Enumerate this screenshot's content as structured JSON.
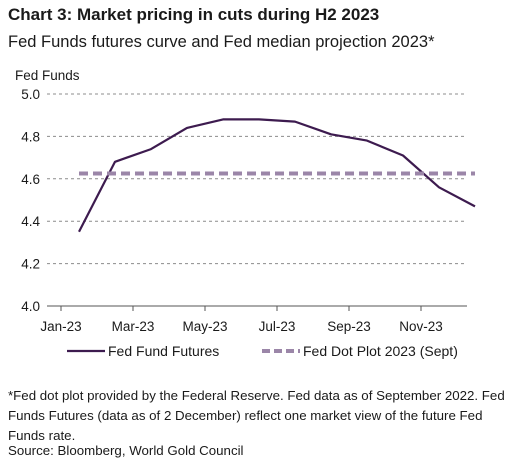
{
  "header": {
    "title": "Chart 3: Market pricing in cuts during H2 2023",
    "subtitle": "Fed Funds futures curve and Fed median projection 2023*"
  },
  "footer": {
    "note": "*Fed dot plot provided by the Federal Reserve. Fed data as of September 2022. Fed Funds Futures (data as of 2 December) reflect one market view of the future Fed Funds rate.",
    "source": "Source: Bloomberg, World Gold Council"
  },
  "colors": {
    "futures": "#3d1b4f",
    "dot_plot": "#9b86a8",
    "grid": "#8c8c8c",
    "axis": "#555555"
  },
  "chart_data": {
    "type": "line",
    "ylabel": "Fed Funds",
    "ylim": [
      4.0,
      5.0
    ],
    "yticks": [
      "4.0",
      "4.2",
      "4.4",
      "4.6",
      "4.8",
      "5.0"
    ],
    "grid": "horizontal dashed",
    "legend_position": "bottom",
    "xlim": [
      0,
      11
    ],
    "xticks": [
      {
        "label": "Jan-23",
        "x": 0
      },
      {
        "label": "Mar-23",
        "x": 2
      },
      {
        "label": "May-23",
        "x": 4
      },
      {
        "label": "Jul-23",
        "x": 6
      },
      {
        "label": "Sep-23",
        "x": 8
      },
      {
        "label": "Nov-23",
        "x": 10
      }
    ],
    "series": [
      {
        "name": "Fed Fund Futures",
        "style": "solid",
        "x": [
          0.5,
          1.5,
          2.5,
          3.5,
          4.5,
          5.5,
          6.5,
          7.5,
          8.5,
          9.5,
          10.5,
          11.5
        ],
        "y": [
          4.35,
          4.68,
          4.74,
          4.84,
          4.88,
          4.88,
          4.87,
          4.81,
          4.78,
          4.71,
          4.56,
          4.47
        ]
      },
      {
        "name": "Fed Dot Plot 2023 (Sept)",
        "style": "dashed",
        "x": [
          0.5,
          11.5
        ],
        "y": [
          4.625,
          4.625
        ]
      }
    ]
  }
}
